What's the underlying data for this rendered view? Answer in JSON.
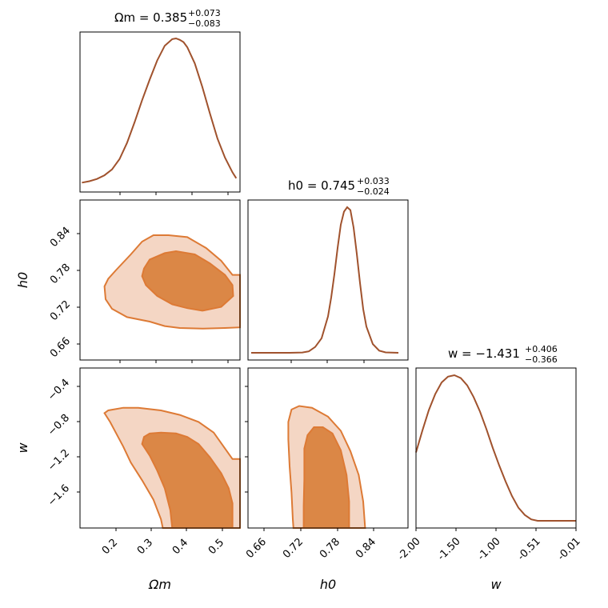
{
  "colors": {
    "line": "#a0522d",
    "fill_outer": "#f4d6c4",
    "fill_inner": "#db8746",
    "contour_edge": "#dd7a35"
  },
  "chart_data": {
    "type": "corner",
    "parameters": [
      "Omega_m",
      "h_0",
      "w"
    ],
    "titles": [
      {
        "lhs": "Ωm = 0.385",
        "sup": "+0.073",
        "sub": "−0.083"
      },
      {
        "lhs": "h0 = 0.745",
        "sup": "+0.033",
        "sub": "−0.024"
      },
      {
        "lhs": "w = −1.431",
        "sup": "+0.406",
        "sub": "−0.366"
      }
    ],
    "axis_labels": {
      "Omega_m": "Ωm",
      "h_0": "h0",
      "w": "w"
    },
    "ranges": {
      "Omega_m": [
        0.115,
        0.54
      ],
      "h_0": [
        0.635,
        0.885
      ],
      "w": [
        -2.0,
        -0.19
      ]
    },
    "ticks": {
      "Omega_m": [
        {
          "v": 0.2,
          "label": "0.2"
        },
        {
          "v": 0.3,
          "label": "0.3"
        },
        {
          "v": 0.4,
          "label": "0.4"
        },
        {
          "v": 0.5,
          "label": "0.5"
        }
      ],
      "h_0": [
        {
          "v": 0.66,
          "label": "0.66"
        },
        {
          "v": 0.72,
          "label": "0.72"
        },
        {
          "v": 0.78,
          "label": "0.78"
        },
        {
          "v": 0.84,
          "label": "0.84"
        }
      ],
      "w_left": [
        {
          "v": -0.4,
          "label": "−0.4"
        },
        {
          "v": -0.8,
          "label": "−0.8"
        },
        {
          "v": -1.2,
          "label": "−1.2"
        },
        {
          "v": -1.6,
          "label": "−1.6"
        }
      ],
      "w_bottom": [
        {
          "v": 0.0,
          "label": "-2.00"
        },
        {
          "v": 0.25,
          "label": "-1.50"
        },
        {
          "v": 0.5,
          "label": "-1.00"
        },
        {
          "v": 0.75,
          "label": "-0.51"
        },
        {
          "v": 1.0,
          "label": "-0.01"
        }
      ]
    },
    "marginals": [
      {
        "param": "Omega_m",
        "x": [
          0.12,
          0.14,
          0.16,
          0.18,
          0.2,
          0.22,
          0.24,
          0.26,
          0.28,
          0.3,
          0.32,
          0.34,
          0.36,
          0.37,
          0.38,
          0.39,
          0.4,
          0.42,
          0.44,
          0.46,
          0.48,
          0.5,
          0.52,
          0.53
        ],
        "y": [
          0.02,
          0.03,
          0.045,
          0.07,
          0.11,
          0.18,
          0.29,
          0.43,
          0.58,
          0.72,
          0.85,
          0.95,
          0.995,
          1.0,
          0.99,
          0.975,
          0.94,
          0.83,
          0.67,
          0.49,
          0.32,
          0.19,
          0.09,
          0.05
        ]
      },
      {
        "param": "h_0",
        "x": [
          0.64,
          0.7,
          0.72,
          0.73,
          0.74,
          0.75,
          0.76,
          0.765,
          0.77,
          0.775,
          0.78,
          0.785,
          0.79,
          0.795,
          0.8,
          0.805,
          0.81,
          0.815,
          0.82,
          0.83,
          0.84,
          0.85,
          0.87
        ],
        "y": [
          0.0,
          0.0,
          0.002,
          0.01,
          0.04,
          0.1,
          0.25,
          0.38,
          0.54,
          0.72,
          0.88,
          0.97,
          1.0,
          0.98,
          0.86,
          0.68,
          0.48,
          0.3,
          0.18,
          0.06,
          0.015,
          0.003,
          0.0
        ]
      },
      {
        "param": "w",
        "x": [
          0.0,
          0.04,
          0.08,
          0.12,
          0.16,
          0.2,
          0.24,
          0.28,
          0.32,
          0.36,
          0.4,
          0.44,
          0.48,
          0.52,
          0.56,
          0.6,
          0.64,
          0.68,
          0.72,
          0.76,
          0.8,
          0.88,
          0.96,
          1.0
        ],
        "y": [
          0.47,
          0.62,
          0.76,
          0.87,
          0.95,
          0.99,
          1.0,
          0.98,
          0.93,
          0.85,
          0.75,
          0.63,
          0.5,
          0.38,
          0.27,
          0.17,
          0.09,
          0.04,
          0.01,
          0.0,
          0.0,
          0.0,
          0.0,
          0.0
        ]
      }
    ],
    "contours": [
      {
        "x": "Omega_m",
        "y": "h_0",
        "outer": [
          [
            0.54,
            0.768
          ],
          [
            0.52,
            0.768
          ],
          [
            0.49,
            0.79
          ],
          [
            0.45,
            0.81
          ],
          [
            0.4,
            0.827
          ],
          [
            0.35,
            0.83
          ],
          [
            0.31,
            0.83
          ],
          [
            0.28,
            0.82
          ],
          [
            0.25,
            0.8
          ],
          [
            0.21,
            0.775
          ],
          [
            0.19,
            0.762
          ],
          [
            0.18,
            0.75
          ],
          [
            0.183,
            0.73
          ],
          [
            0.2,
            0.715
          ],
          [
            0.24,
            0.702
          ],
          [
            0.3,
            0.695
          ],
          [
            0.34,
            0.688
          ],
          [
            0.38,
            0.685
          ],
          [
            0.44,
            0.684
          ],
          [
            0.5,
            0.685
          ],
          [
            0.54,
            0.686
          ]
        ],
        "inner": [
          [
            0.285,
            0.778
          ],
          [
            0.3,
            0.792
          ],
          [
            0.34,
            0.802
          ],
          [
            0.37,
            0.805
          ],
          [
            0.42,
            0.8
          ],
          [
            0.46,
            0.786
          ],
          [
            0.5,
            0.768
          ],
          [
            0.52,
            0.752
          ],
          [
            0.522,
            0.735
          ],
          [
            0.49,
            0.718
          ],
          [
            0.44,
            0.712
          ],
          [
            0.4,
            0.716
          ],
          [
            0.36,
            0.722
          ],
          [
            0.32,
            0.735
          ],
          [
            0.29,
            0.752
          ],
          [
            0.28,
            0.766
          ],
          [
            0.285,
            0.778
          ]
        ]
      },
      {
        "x": "Omega_m",
        "y": "w",
        "outer": [
          [
            0.54,
            -2.0
          ],
          [
            0.54,
            -1.22
          ],
          [
            0.52,
            -1.22
          ],
          [
            0.5,
            -1.1
          ],
          [
            0.47,
            -0.92
          ],
          [
            0.43,
            -0.8
          ],
          [
            0.38,
            -0.72
          ],
          [
            0.33,
            -0.67
          ],
          [
            0.27,
            -0.64
          ],
          [
            0.23,
            -0.64
          ],
          [
            0.19,
            -0.67
          ],
          [
            0.18,
            -0.7
          ],
          [
            0.195,
            -0.8
          ],
          [
            0.21,
            -0.92
          ],
          [
            0.23,
            -1.08
          ],
          [
            0.25,
            -1.26
          ],
          [
            0.28,
            -1.46
          ],
          [
            0.31,
            -1.68
          ],
          [
            0.33,
            -1.9
          ],
          [
            0.335,
            -2.0
          ]
        ],
        "inner": [
          [
            0.43,
            -2.0
          ],
          [
            0.52,
            -2.0
          ],
          [
            0.52,
            -1.72
          ],
          [
            0.51,
            -1.55
          ],
          [
            0.49,
            -1.38
          ],
          [
            0.46,
            -1.2
          ],
          [
            0.43,
            -1.05
          ],
          [
            0.4,
            -0.97
          ],
          [
            0.37,
            -0.93
          ],
          [
            0.33,
            -0.92
          ],
          [
            0.3,
            -0.93
          ],
          [
            0.285,
            -0.97
          ],
          [
            0.28,
            -1.05
          ],
          [
            0.3,
            -1.18
          ],
          [
            0.32,
            -1.35
          ],
          [
            0.34,
            -1.55
          ],
          [
            0.355,
            -1.8
          ],
          [
            0.36,
            -2.0
          ]
        ]
      },
      {
        "x": "h_0",
        "y": "w",
        "outer": [
          [
            0.818,
            -2.0
          ],
          [
            0.815,
            -1.7
          ],
          [
            0.808,
            -1.4
          ],
          [
            0.795,
            -1.13
          ],
          [
            0.78,
            -0.9
          ],
          [
            0.76,
            -0.74
          ],
          [
            0.735,
            -0.64
          ],
          [
            0.715,
            -0.62
          ],
          [
            0.703,
            -0.66
          ],
          [
            0.698,
            -0.8
          ],
          [
            0.698,
            -1.0
          ],
          [
            0.7,
            -1.3
          ],
          [
            0.703,
            -1.6
          ],
          [
            0.705,
            -1.9
          ],
          [
            0.706,
            -2.0
          ]
        ],
        "inner": [
          [
            0.793,
            -2.0
          ],
          [
            0.793,
            -1.7
          ],
          [
            0.789,
            -1.4
          ],
          [
            0.78,
            -1.12
          ],
          [
            0.767,
            -0.93
          ],
          [
            0.752,
            -0.86
          ],
          [
            0.738,
            -0.86
          ],
          [
            0.728,
            -0.95
          ],
          [
            0.723,
            -1.1
          ],
          [
            0.723,
            -1.45
          ],
          [
            0.722,
            -1.75
          ],
          [
            0.722,
            -2.0
          ]
        ]
      }
    ]
  }
}
